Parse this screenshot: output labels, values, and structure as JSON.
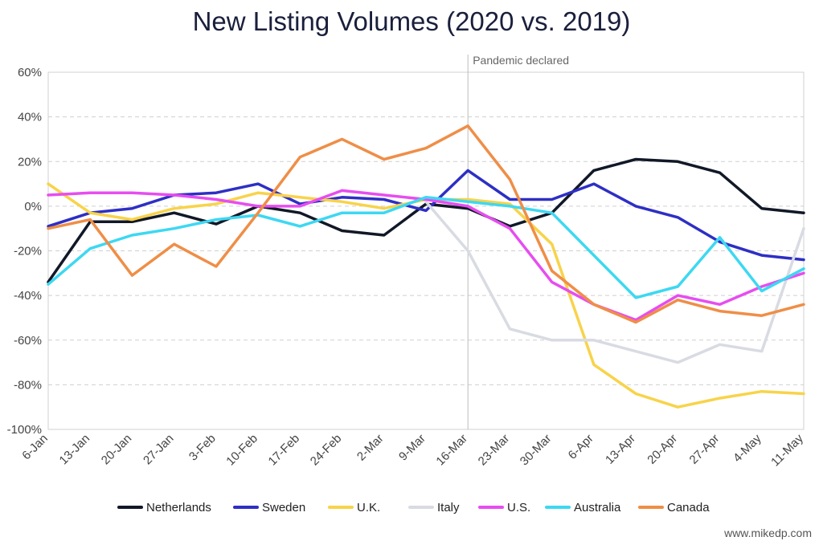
{
  "title": "New Listing Volumes (2020 vs. 2019)",
  "credit": "www.mikedp.com",
  "chart_data": {
    "type": "line",
    "title": "New Listing Volumes (2020 vs. 2019)",
    "xlabel": "",
    "ylabel": "",
    "categories": [
      "6-Jan",
      "13-Jan",
      "20-Jan",
      "27-Jan",
      "3-Feb",
      "10-Feb",
      "17-Feb",
      "24-Feb",
      "2-Mar",
      "9-Mar",
      "16-Mar",
      "23-Mar",
      "30-Mar",
      "6-Apr",
      "13-Apr",
      "20-Apr",
      "27-Apr",
      "4-May",
      "11-May"
    ],
    "ylim": [
      -100,
      60
    ],
    "yticks": [
      60,
      40,
      20,
      0,
      -20,
      -40,
      -60,
      -80,
      -100
    ],
    "ytick_labels": [
      "60%",
      "40%",
      "20%",
      "0%",
      "-20%",
      "-40%",
      "-60%",
      "-80%",
      "-100%"
    ],
    "grid": true,
    "legend_position": "bottom",
    "annotation": {
      "label": "Pandemic declared",
      "category": "16-Mar"
    },
    "series": [
      {
        "name": "Netherlands",
        "color": "#111827",
        "values": [
          -34,
          -7,
          -7,
          -3,
          -8,
          0,
          -3,
          -11,
          -13,
          1,
          -1,
          -9,
          -3,
          16,
          21,
          20,
          15,
          -1,
          -3
        ]
      },
      {
        "name": "Sweden",
        "color": "#2e2fc4",
        "values": [
          -9,
          -3,
          -1,
          5,
          6,
          10,
          1,
          4,
          3,
          -2,
          16,
          3,
          3,
          10,
          0,
          -5,
          -16,
          -22,
          -24
        ]
      },
      {
        "name": "U.K.",
        "color": "#f8d34a",
        "values": [
          10,
          -3,
          -6,
          -1,
          1,
          6,
          4,
          2,
          -1,
          3,
          3,
          1,
          -17,
          -71,
          -84,
          -90,
          -86,
          -83,
          -84
        ]
      },
      {
        "name": "Italy",
        "color": "#d9dbe3",
        "values": [
          null,
          null,
          null,
          null,
          null,
          null,
          null,
          null,
          null,
          2,
          -20,
          -55,
          -60,
          -60,
          -65,
          -70,
          -62,
          -65,
          -10
        ]
      },
      {
        "name": "U.S.",
        "color": "#e64df0",
        "values": [
          5,
          6,
          6,
          5,
          3,
          0,
          0,
          7,
          5,
          3,
          0,
          -10,
          -34,
          -44,
          -51,
          -40,
          -44,
          -36,
          -30
        ]
      },
      {
        "name": "Australia",
        "color": "#3dd8f2",
        "values": [
          -35,
          -19,
          -13,
          -10,
          -6,
          -4,
          -9,
          -3,
          -3,
          4,
          2,
          0,
          -3,
          -22,
          -41,
          -36,
          -14,
          -38,
          -28
        ]
      },
      {
        "name": "Canada",
        "color": "#ef8e47",
        "values": [
          -10,
          -6,
          -31,
          -17,
          -27,
          -3,
          22,
          30,
          21,
          26,
          36,
          12,
          -29,
          -44,
          -52,
          -42,
          -47,
          -49,
          -44
        ]
      }
    ]
  }
}
